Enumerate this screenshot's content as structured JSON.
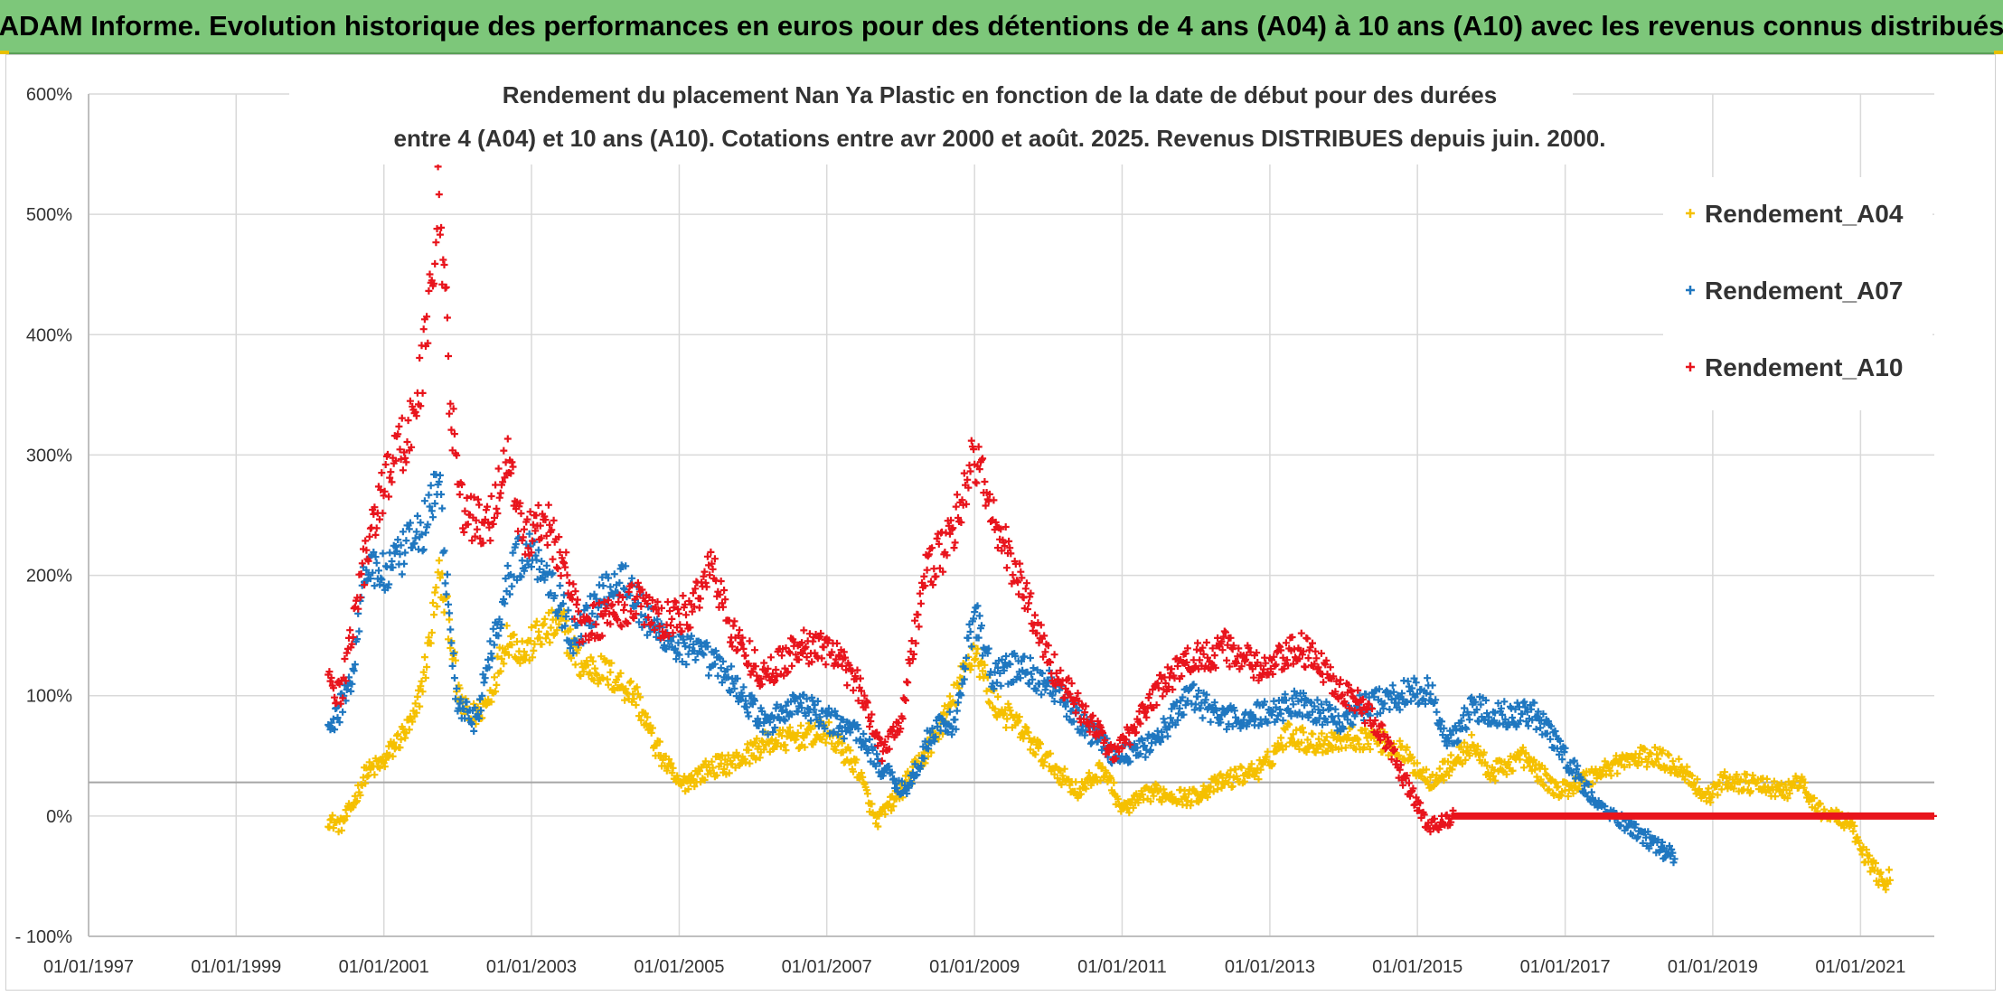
{
  "banner": {
    "title": "ADAM Informe. Evolution historique des performances en euros pour des détentions de 4 ans (A04) à 10 ans (A10) avec les revenus connus distribués"
  },
  "chart_data": {
    "type": "scatter",
    "title_lines": [
      "Rendement du placement Nan Ya Plastic  en fonction de la date de début pour des durées",
      "entre 4 (A04) et 10 ans (A10). Cotations entre avr 2000 et août. 2025. Revenus DISTRIBUES depuis juin. 2000."
    ],
    "xlim": [
      "1997-01-01",
      "2022-01-01"
    ],
    "ylim": [
      -100,
      600
    ],
    "y_ticks": [
      -100,
      0,
      100,
      200,
      300,
      400,
      500,
      600
    ],
    "y_tick_labels": [
      "- 100%",
      "0%",
      "100%",
      "200%",
      "300%",
      "400%",
      "500%",
      "600%"
    ],
    "x_ticks": [
      "1997-01-01",
      "1999-01-01",
      "2001-01-01",
      "2003-01-01",
      "2005-01-01",
      "2007-01-01",
      "2009-01-01",
      "2011-01-01",
      "2013-01-01",
      "2015-01-01",
      "2017-01-01",
      "2019-01-01",
      "2021-01-01"
    ],
    "x_tick_labels": [
      "01/01/1997",
      "01/01/1999",
      "01/01/2001",
      "01/01/2003",
      "01/01/2005",
      "01/01/2007",
      "01/01/2009",
      "01/01/2011",
      "01/01/2013",
      "01/01/2015",
      "01/01/2017",
      "01/01/2019",
      "01/01/2021"
    ],
    "grid": true,
    "reference_line": 28,
    "legend_position": "top-right",
    "marker": "+",
    "series": [
      {
        "name": "Rendement_A04",
        "color": "#f5c000",
        "points": [
          [
            "2000-04-01",
            -3
          ],
          [
            "2000-06-01",
            -8
          ],
          [
            "2000-08-01",
            10
          ],
          [
            "2000-10-01",
            35
          ],
          [
            "2001-01-01",
            45
          ],
          [
            "2001-03-01",
            60
          ],
          [
            "2001-06-01",
            80
          ],
          [
            "2001-08-01",
            130
          ],
          [
            "2001-10-01",
            200
          ],
          [
            "2001-12-01",
            150
          ],
          [
            "2002-01-01",
            100
          ],
          [
            "2002-03-01",
            80
          ],
          [
            "2002-06-01",
            95
          ],
          [
            "2002-09-01",
            150
          ],
          [
            "2002-12-01",
            135
          ],
          [
            "2003-02-01",
            150
          ],
          [
            "2003-06-01",
            160
          ],
          [
            "2003-09-01",
            125
          ],
          [
            "2004-01-01",
            120
          ],
          [
            "2004-06-01",
            100
          ],
          [
            "2004-09-01",
            60
          ],
          [
            "2005-01-01",
            25
          ],
          [
            "2005-06-01",
            40
          ],
          [
            "2005-10-01",
            45
          ],
          [
            "2006-03-01",
            60
          ],
          [
            "2006-08-01",
            65
          ],
          [
            "2007-01-01",
            70
          ],
          [
            "2007-06-01",
            40
          ],
          [
            "2007-09-01",
            -5
          ],
          [
            "2008-01-01",
            20
          ],
          [
            "2008-06-01",
            60
          ],
          [
            "2008-09-01",
            90
          ],
          [
            "2009-01-01",
            140
          ],
          [
            "2009-04-01",
            95
          ],
          [
            "2009-08-01",
            75
          ],
          [
            "2010-01-01",
            45
          ],
          [
            "2010-06-01",
            20
          ],
          [
            "2010-10-01",
            40
          ],
          [
            "2011-01-01",
            5
          ],
          [
            "2011-06-01",
            20
          ],
          [
            "2011-12-01",
            15
          ],
          [
            "2012-06-01",
            30
          ],
          [
            "2012-12-01",
            40
          ],
          [
            "2013-04-01",
            70
          ],
          [
            "2013-08-01",
            60
          ],
          [
            "2014-01-01",
            65
          ],
          [
            "2014-06-01",
            65
          ],
          [
            "2014-10-01",
            55
          ],
          [
            "2015-03-01",
            30
          ],
          [
            "2015-06-01",
            40
          ],
          [
            "2015-10-01",
            60
          ],
          [
            "2016-01-01",
            35
          ],
          [
            "2016-06-01",
            50
          ],
          [
            "2016-12-01",
            20
          ],
          [
            "2017-06-01",
            35
          ],
          [
            "2017-10-01",
            45
          ],
          [
            "2018-03-01",
            50
          ],
          [
            "2018-08-01",
            40
          ],
          [
            "2018-12-01",
            15
          ],
          [
            "2019-03-01",
            30
          ],
          [
            "2019-09-01",
            25
          ],
          [
            "2020-01-01",
            20
          ],
          [
            "2020-03-01",
            30
          ],
          [
            "2020-06-01",
            5
          ],
          [
            "2020-11-01",
            -5
          ],
          [
            "2021-03-01",
            -45
          ],
          [
            "2021-06-01",
            -55
          ]
        ]
      },
      {
        "name": "Rendement_A07",
        "color": "#1f77c0",
        "points": [
          [
            "2000-04-01",
            70
          ],
          [
            "2000-06-01",
            90
          ],
          [
            "2000-08-01",
            120
          ],
          [
            "2000-10-01",
            210
          ],
          [
            "2001-01-01",
            200
          ],
          [
            "2001-03-01",
            210
          ],
          [
            "2001-06-01",
            230
          ],
          [
            "2001-08-01",
            245
          ],
          [
            "2001-10-01",
            280
          ],
          [
            "2001-12-01",
            140
          ],
          [
            "2002-01-01",
            90
          ],
          [
            "2002-04-01",
            80
          ],
          [
            "2002-07-01",
            150
          ],
          [
            "2002-10-01",
            210
          ],
          [
            "2003-01-01",
            220
          ],
          [
            "2003-04-01",
            200
          ],
          [
            "2003-08-01",
            145
          ],
          [
            "2004-01-01",
            190
          ],
          [
            "2004-04-01",
            200
          ],
          [
            "2004-08-01",
            160
          ],
          [
            "2005-01-01",
            140
          ],
          [
            "2005-06-01",
            130
          ],
          [
            "2005-10-01",
            110
          ],
          [
            "2006-03-01",
            75
          ],
          [
            "2006-08-01",
            95
          ],
          [
            "2007-01-01",
            80
          ],
          [
            "2007-06-01",
            70
          ],
          [
            "2007-10-01",
            40
          ],
          [
            "2008-02-01",
            20
          ],
          [
            "2008-06-01",
            70
          ],
          [
            "2008-10-01",
            80
          ],
          [
            "2009-01-01",
            170
          ],
          [
            "2009-04-01",
            115
          ],
          [
            "2009-08-01",
            125
          ],
          [
            "2010-01-01",
            110
          ],
          [
            "2010-06-01",
            80
          ],
          [
            "2010-12-01",
            50
          ],
          [
            "2011-06-01",
            60
          ],
          [
            "2011-12-01",
            100
          ],
          [
            "2012-06-01",
            80
          ],
          [
            "2012-12-01",
            85
          ],
          [
            "2013-06-01",
            95
          ],
          [
            "2013-12-01",
            80
          ],
          [
            "2014-06-01",
            95
          ],
          [
            "2014-10-01",
            100
          ],
          [
            "2015-03-01",
            105
          ],
          [
            "2015-06-01",
            60
          ],
          [
            "2015-10-01",
            90
          ],
          [
            "2016-03-01",
            85
          ],
          [
            "2016-08-01",
            85
          ],
          [
            "2017-01-01",
            50
          ],
          [
            "2017-06-01",
            10
          ],
          [
            "2017-12-01",
            -10
          ],
          [
            "2018-04-01",
            -25
          ],
          [
            "2018-07-01",
            -35
          ]
        ]
      },
      {
        "name": "Rendement_A10",
        "color": "#e8141c",
        "points": [
          [
            "2000-04-01",
            110
          ],
          [
            "2000-06-01",
            100
          ],
          [
            "2000-09-01",
            190
          ],
          [
            "2000-12-01",
            260
          ],
          [
            "2001-03-01",
            300
          ],
          [
            "2001-06-01",
            330
          ],
          [
            "2001-08-01",
            400
          ],
          [
            "2001-10-01",
            520
          ],
          [
            "2001-12-01",
            330
          ],
          [
            "2002-02-01",
            250
          ],
          [
            "2002-06-01",
            240
          ],
          [
            "2002-09-01",
            300
          ],
          [
            "2002-12-01",
            230
          ],
          [
            "2003-03-01",
            250
          ],
          [
            "2003-06-01",
            215
          ],
          [
            "2003-09-01",
            155
          ],
          [
            "2004-01-01",
            165
          ],
          [
            "2004-06-01",
            180
          ],
          [
            "2004-10-01",
            160
          ],
          [
            "2005-03-01",
            170
          ],
          [
            "2005-06-01",
            210
          ],
          [
            "2005-10-01",
            150
          ],
          [
            "2006-03-01",
            115
          ],
          [
            "2006-08-01",
            140
          ],
          [
            "2007-01-01",
            140
          ],
          [
            "2007-06-01",
            110
          ],
          [
            "2007-10-01",
            55
          ],
          [
            "2008-01-01",
            80
          ],
          [
            "2008-05-01",
            200
          ],
          [
            "2008-09-01",
            230
          ],
          [
            "2009-01-01",
            300
          ],
          [
            "2009-05-01",
            235
          ],
          [
            "2009-10-01",
            175
          ],
          [
            "2010-01-01",
            130
          ],
          [
            "2010-06-01",
            90
          ],
          [
            "2010-12-01",
            50
          ],
          [
            "2011-06-01",
            100
          ],
          [
            "2011-12-01",
            130
          ],
          [
            "2012-06-01",
            140
          ],
          [
            "2012-12-01",
            120
          ],
          [
            "2013-06-01",
            140
          ],
          [
            "2013-12-01",
            110
          ],
          [
            "2014-06-01",
            80
          ],
          [
            "2014-10-01",
            40
          ],
          [
            "2015-03-01",
            -10
          ],
          [
            "2015-07-01",
            0
          ],
          [
            "2017-01-01",
            0
          ],
          [
            "2019-01-01",
            0
          ],
          [
            "2021-01-01",
            0
          ],
          [
            "2022-01-01",
            0
          ]
        ]
      }
    ]
  }
}
